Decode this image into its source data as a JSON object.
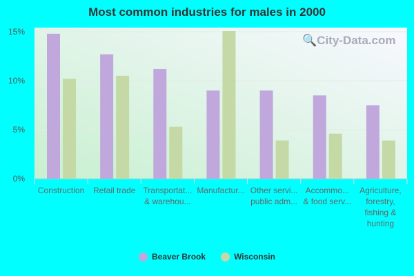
{
  "chart_data": {
    "type": "bar",
    "title": "Most common industries for males in 2000",
    "categories": [
      [
        "Construction"
      ],
      [
        "Retail trade"
      ],
      [
        "Transportat...",
        "& warehou..."
      ],
      [
        "Manufactur..."
      ],
      [
        "Other servi...",
        "public adm..."
      ],
      [
        "Accommo...",
        "& food serv..."
      ],
      [
        "Agriculture,",
        "forestry,",
        "fishing &",
        "hunting"
      ]
    ],
    "series": [
      {
        "name": "Beaver Brook",
        "color": "#c0a8dc",
        "values": [
          14.8,
          12.7,
          11.2,
          9.0,
          9.0,
          8.5,
          7.5
        ]
      },
      {
        "name": "Wisconsin",
        "color": "#c4d9a6",
        "values": [
          10.2,
          10.5,
          5.3,
          15.1,
          3.9,
          4.6,
          3.9
        ]
      }
    ],
    "yticks": [
      "0%",
      "5%",
      "10%",
      "15%"
    ],
    "ylim": [
      0,
      15
    ],
    "grid": true,
    "legend": "bottom"
  },
  "watermark": "City-Data.com"
}
